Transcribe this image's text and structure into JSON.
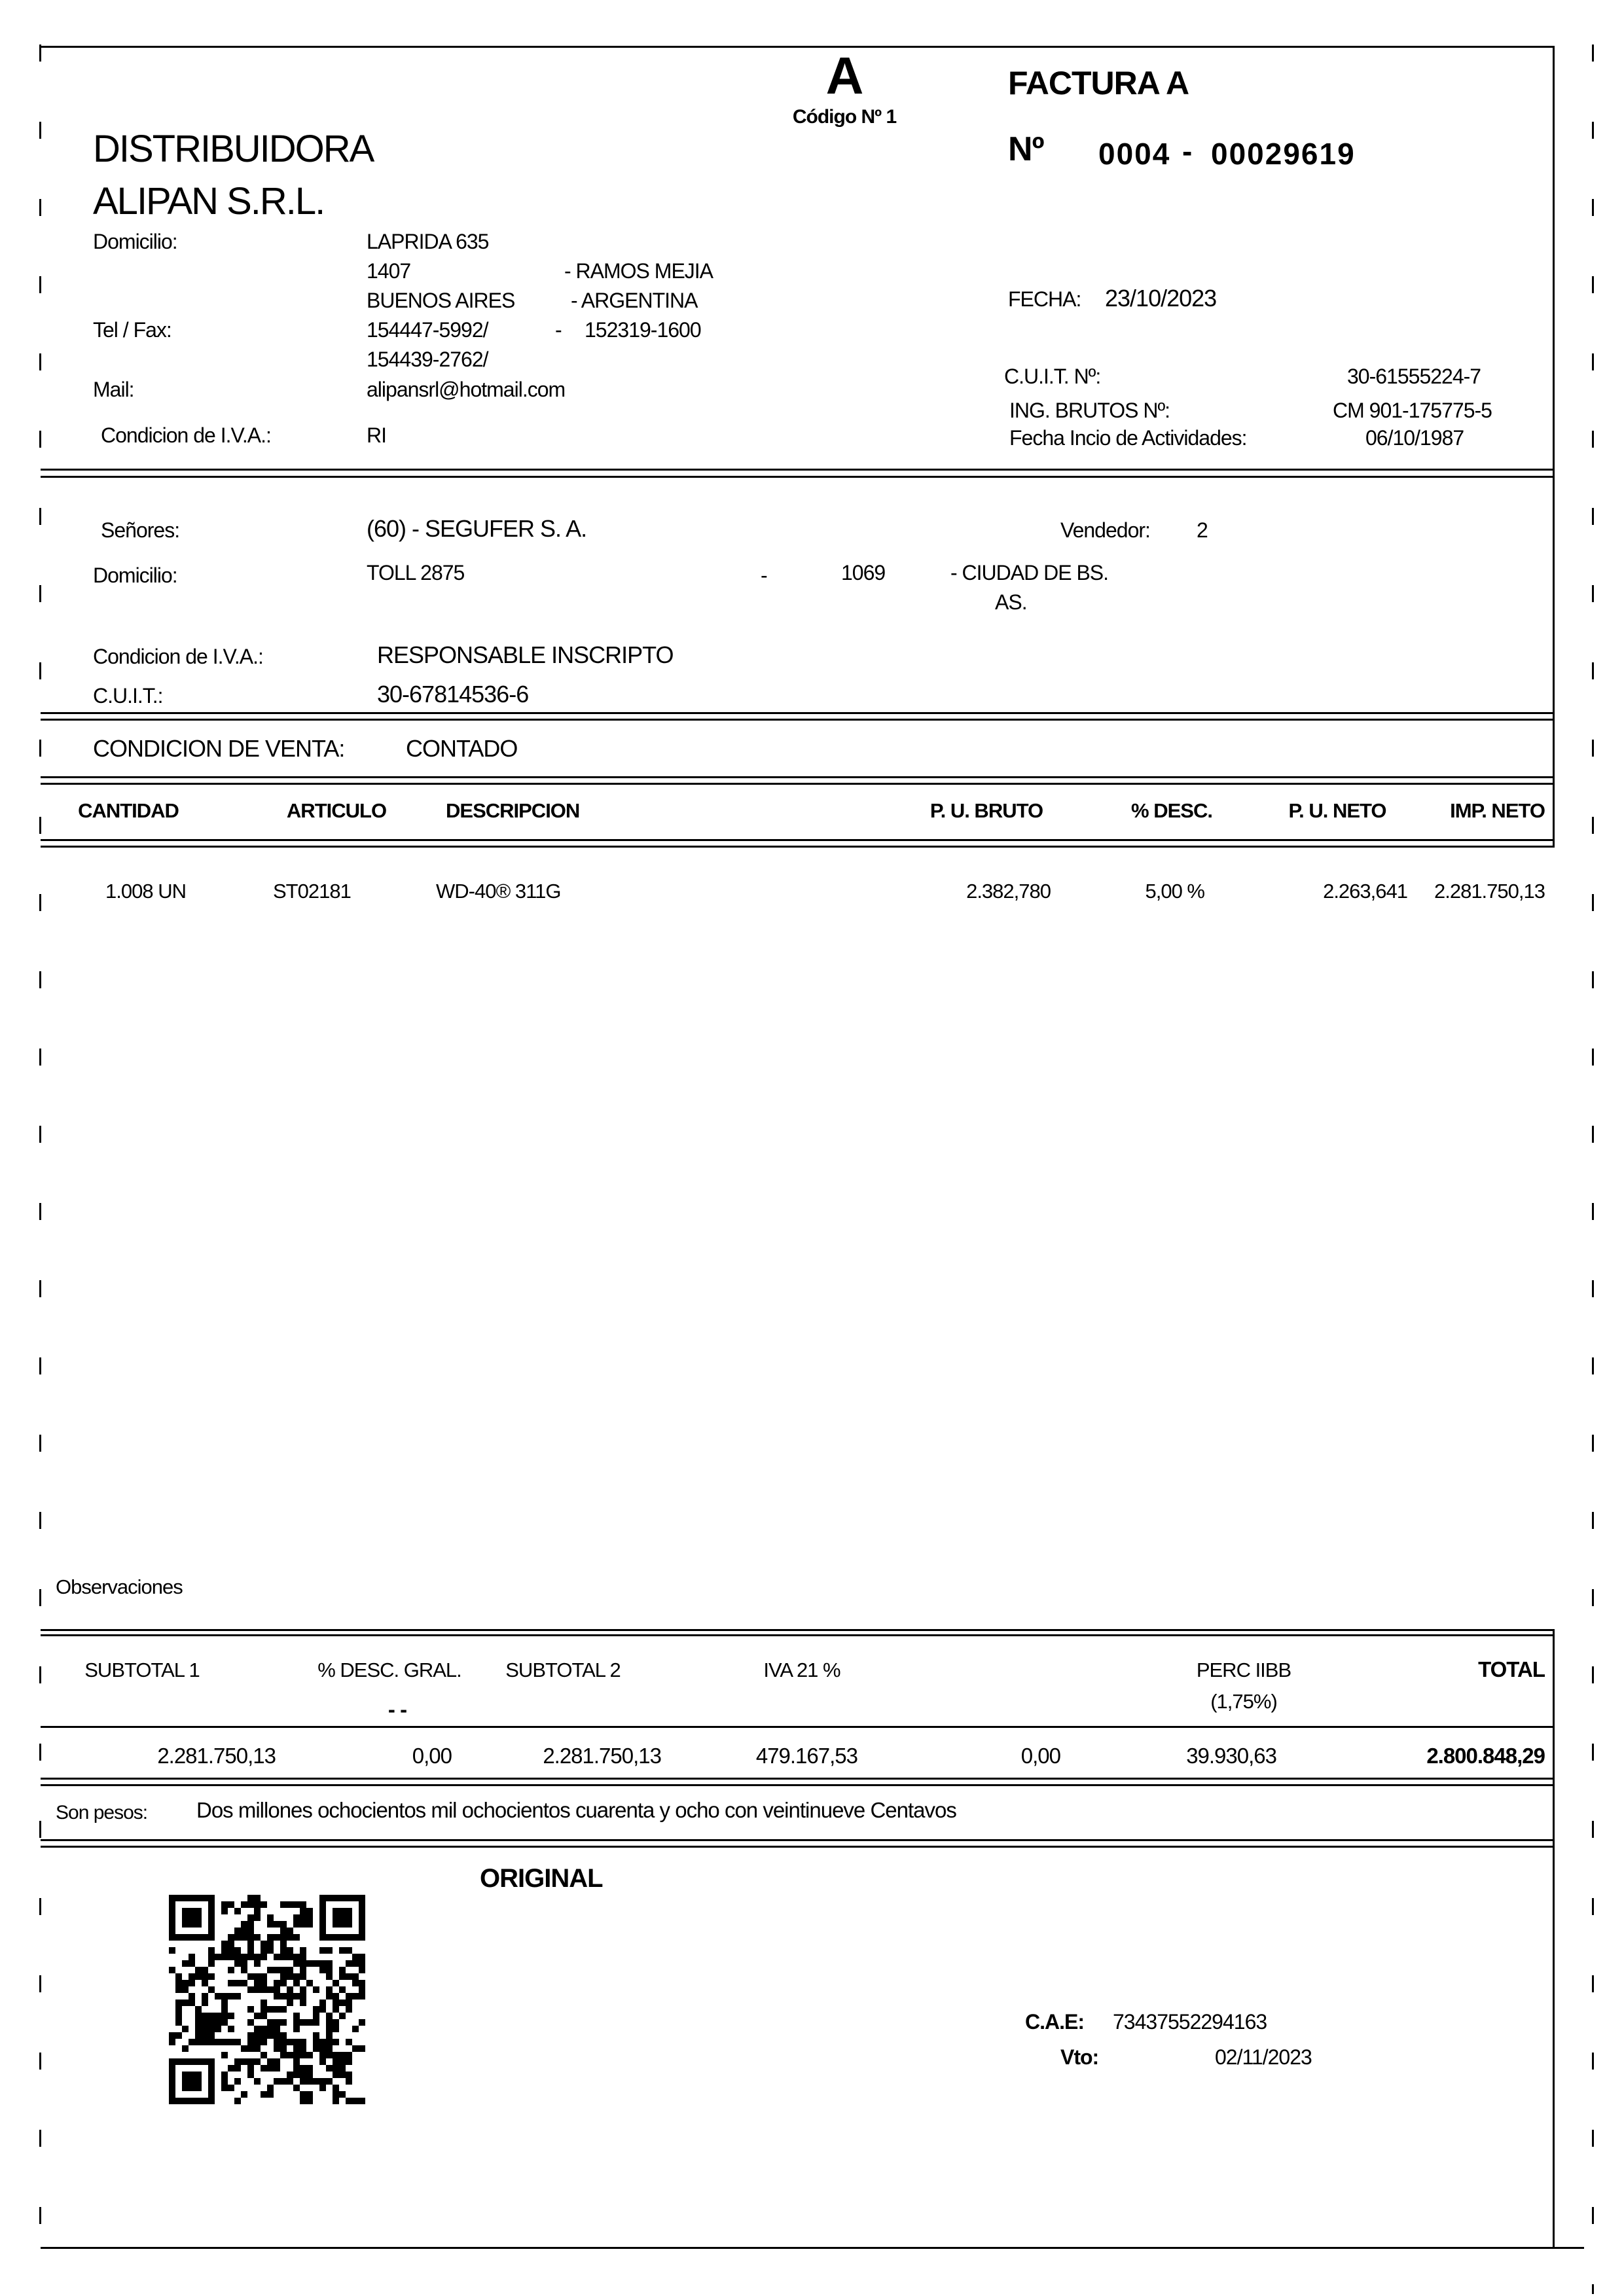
{
  "header": {
    "letter": "A",
    "code": "Código Nº 1",
    "doc_type": "FACTURA A",
    "number_label": "Nº",
    "number_pos": "0004",
    "number_dash": "-",
    "number_seq": "00029619",
    "company_name_line1": "DISTRIBUIDORA",
    "company_name_line2": "ALIPAN S.R.L.",
    "address_label": "Domicilio:",
    "address_line1": "LAPRIDA 635",
    "address_line2_left": "1407",
    "address_line2_right": "-  RAMOS MEJIA",
    "address_line3_left": "BUENOS AIRES",
    "address_line3_right": "- ARGENTINA",
    "telfax_label": "Tel / Fax:",
    "tel1": "154447-5992/",
    "tel_dash": "-",
    "tel2": "152319-1600",
    "tel3": "154439-2762/",
    "mail_label": "Mail:",
    "mail_value": "alipansrl@hotmail.com",
    "iva_label": "Condicion de I.V.A.:",
    "iva_value": "RI",
    "fecha_label": "FECHA:",
    "fecha_value": "23/10/2023",
    "cuit_label": "C.U.I.T. Nº:",
    "cuit_value": "30-61555224-7",
    "iibb_label": "ING. BRUTOS Nº:",
    "iibb_value": "CM 901-175775-5",
    "inicio_label": "Fecha Incio de Actividades:",
    "inicio_value": "06/10/1987"
  },
  "customer": {
    "senores_label": "Señores:",
    "senores_value": "(60) - SEGUFER S. A.",
    "vendedor_label": "Vendedor:",
    "vendedor_value": "2",
    "domicilio_label": "Domicilio:",
    "domicilio_value": "TOLL 2875",
    "dash1": "-",
    "postal_code": "1069",
    "city_line1": "- CIUDAD DE BS.",
    "city_line2": "AS.",
    "iva_label": "Condicion de I.V.A.:",
    "iva_value": "RESPONSABLE INSCRIPTO",
    "cuit_label": "C.U.I.T.:",
    "cuit_value": "30-67814536-6"
  },
  "sale_condition": {
    "label": "CONDICION DE VENTA:",
    "value": "CONTADO"
  },
  "items_table": {
    "headers": [
      "CANTIDAD",
      "ARTICULO",
      "DESCRIPCION",
      "P. U. BRUTO",
      "% DESC.",
      "P. U. NETO",
      "IMP. NETO"
    ],
    "rows": [
      [
        "1.008 UN",
        "ST02181",
        "WD-40® 311G",
        "2.382,780",
        "5,00 %",
        "2.263,641",
        "2.281.750,13"
      ]
    ]
  },
  "observaciones_label": "Observaciones",
  "totals": {
    "headers": [
      "SUBTOTAL 1",
      "% DESC. GRAL.",
      "SUBTOTAL 2",
      "IVA 21 %",
      "",
      "PERC IIBB",
      "TOTAL"
    ],
    "perc_iibb_sub": "(1,75%)",
    "desc_gral_dashes": "- -",
    "values": [
      "2.281.750,13",
      "0,00",
      "2.281.750,13",
      "479.167,53",
      "0,00",
      "39.930,63",
      "2.800.848,29"
    ]
  },
  "amount_in_words": {
    "label": "Son pesos:",
    "text": "Dos millones ochocientos mil ochocientos cuarenta y ocho con veintinueve Centavos"
  },
  "footer": {
    "copy_label": "ORIGINAL",
    "cae_label": "C.A.E:",
    "cae_value": "73437552294163",
    "vto_label": "Vto:",
    "vto_value": "02/11/2023"
  }
}
